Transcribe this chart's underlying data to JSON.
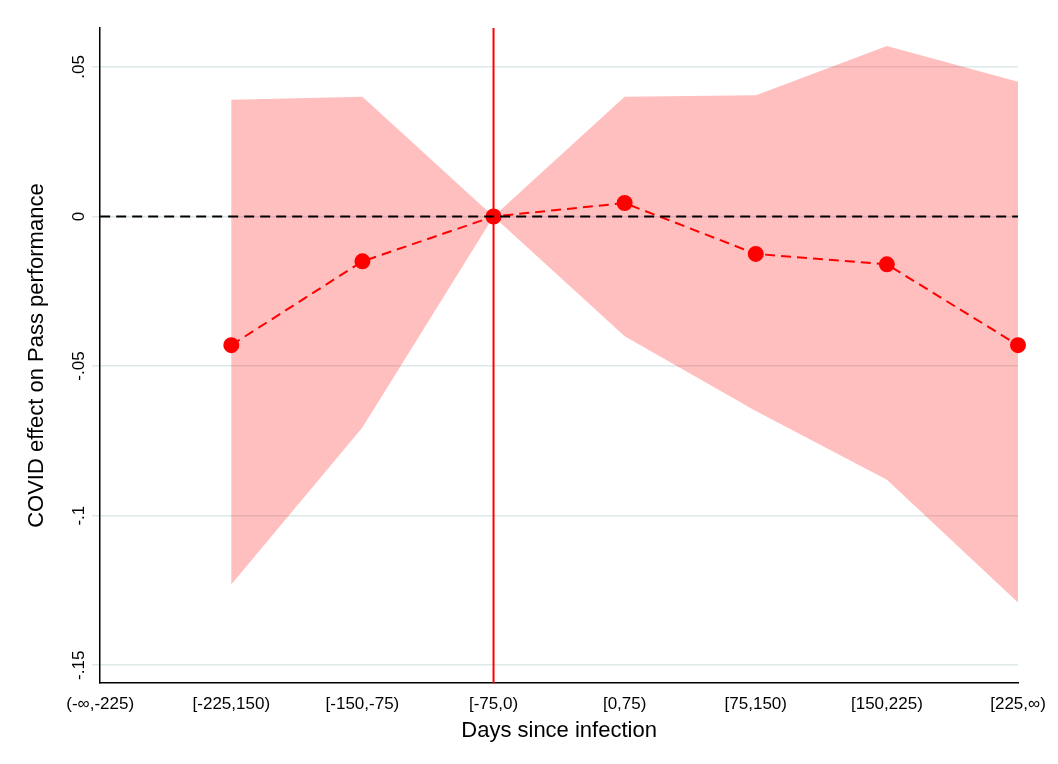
{
  "chart_data": {
    "type": "line",
    "xlabel": "Days since infection",
    "ylabel": "COVID effect on Pass performance",
    "categories": [
      "(-∞,-225)",
      "[-225,150)",
      "[-150,-75)",
      "[-75,0)",
      "[0,75)",
      "[75,150)",
      "[150,225)",
      "[225,∞)"
    ],
    "series": [
      {
        "color": "#ff0000",
        "values": [
          null,
          -0.043,
          -0.015,
          0,
          0.0045,
          -0.0125,
          -0.016,
          -0.043
        ],
        "lower": [
          null,
          -0.123,
          -0.0705,
          0,
          -0.04,
          -0.065,
          -0.088,
          -0.129
        ],
        "upper": [
          null,
          0.039,
          0.04,
          0,
          0.04,
          0.0405,
          0.057,
          0.045
        ]
      }
    ],
    "ylim": [
      -0.156,
      0.063
    ],
    "yticks": [
      {
        "value": 0.05,
        "label": ".05"
      },
      0,
      {
        "value": -0.05,
        "label": "-.05"
      },
      {
        "value": -0.1,
        "label": "-.1"
      },
      {
        "value": -0.15,
        "label": "-.15"
      }
    ],
    "ref_lines": [
      {
        "axis": "x",
        "value": "[-75,0)",
        "color": "#ff0000",
        "line_style": "solid"
      },
      {
        "axis": "y",
        "value": 0,
        "color": "#000000",
        "line_style": "dashed"
      }
    ],
    "grid": "y",
    "legend": false,
    "marker": "circle",
    "line_style": "dashed"
  }
}
